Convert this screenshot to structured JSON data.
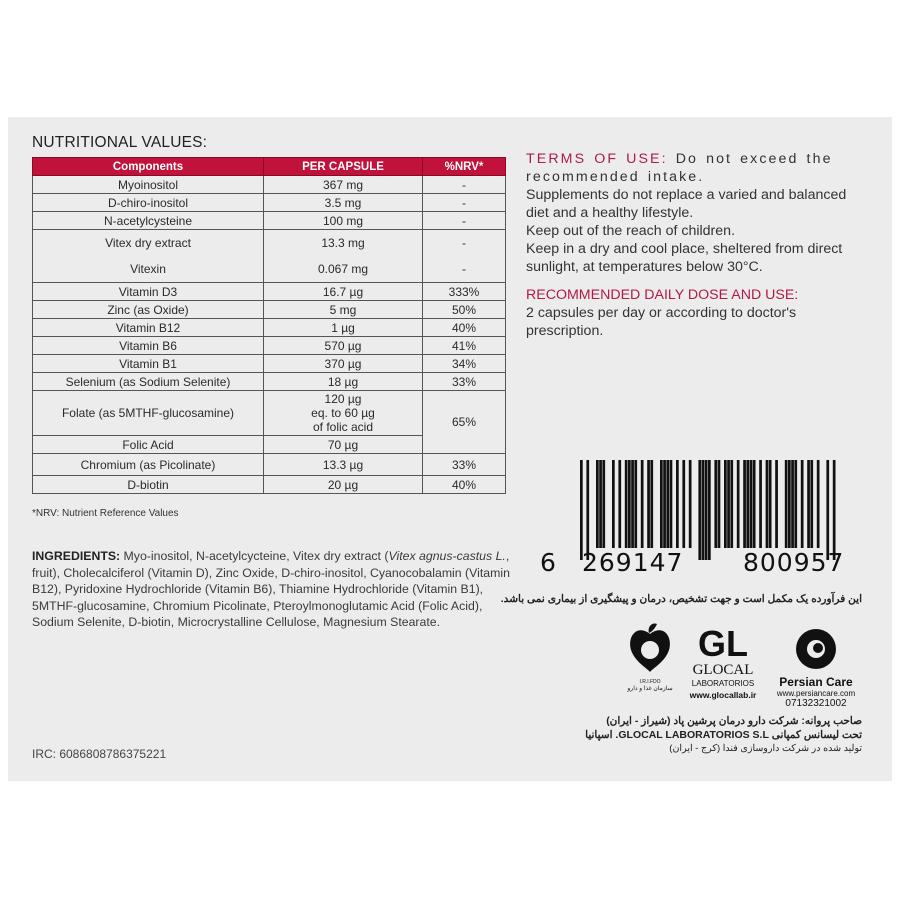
{
  "nutrition": {
    "title": "NUTRITIONAL VALUES:",
    "headers": [
      "Components",
      "PER CAPSULE",
      "%NRV*"
    ],
    "rows": [
      {
        "component": "Myoinositol",
        "per_capsule": "367 mg",
        "nrv": "-"
      },
      {
        "component": "D-chiro-inositol",
        "per_capsule": "3.5 mg",
        "nrv": "-"
      },
      {
        "component": "N-acetylcysteine",
        "per_capsule": "100 mg",
        "nrv": "-"
      },
      {
        "component": "Vitex dry extract",
        "per_capsule": "13.3 mg",
        "nrv": "-"
      },
      {
        "component": "Vitexin",
        "per_capsule": "0.067 mg",
        "nrv": "-"
      },
      {
        "component": "Vitamin D3",
        "per_capsule": "16.7 µg",
        "nrv": "333%"
      },
      {
        "component": "Zinc (as Oxide)",
        "per_capsule": "5 mg",
        "nrv": "50%"
      },
      {
        "component": "Vitamin B12",
        "per_capsule": "1 µg",
        "nrv": "40%"
      },
      {
        "component": "Vitamin B6",
        "per_capsule": "570 µg",
        "nrv": "41%"
      },
      {
        "component": "Vitamin B1",
        "per_capsule": "370 µg",
        "nrv": "34%"
      },
      {
        "component": "Selenium (as Sodium Selenite)",
        "per_capsule": "18 µg",
        "nrv": "33%"
      },
      {
        "component": "Folate (as 5MTHF-glucosamine)",
        "per_capsule_lines": [
          "120 µg",
          "eq. to 60 µg",
          "of folic acid"
        ],
        "nrv": "65%"
      },
      {
        "component": "Folic Acid",
        "per_capsule": "70 µg"
      },
      {
        "component": "Chromium (as Picolinate)",
        "per_capsule": "13.3 µg",
        "nrv": "33%"
      },
      {
        "component": "D-biotin",
        "per_capsule": "20 µg",
        "nrv": "40%"
      }
    ],
    "footnote": "*NRV: Nutrient Reference Values"
  },
  "ingredients": {
    "label": "INGREDIENTS:",
    "text1": " Myo-inositol, N-acetylcycteine, Vitex dry extract (",
    "italic": "Vitex agnus-castus L.",
    "text2": ", fruit), Cholecalciferol (Vitamin D), Zinc Oxide, D-chiro-inositol, Cyanocobalamin (Vitamin B12), Pyridoxine Hydrochloride (Vitamin B6), Thiamine Hydrochloride (Vitamin B1), 5MTHF-glucosamine, Chromium Picolinate, Pteroylmonoglutamic Acid (Folic Acid), Sodium Selenite, D-biotin, Microcrystalline Cellulose, Magnesium Stearate."
  },
  "irc": "IRC: 6086808786375221",
  "terms": {
    "label": "TERMS OF USE:",
    "first": " Do not exceed the recommended intake.",
    "lines": [
      "Supplements do not replace a varied and balanced diet and a healthy lifestyle.",
      "Keep out of the reach of children.",
      "Keep in a dry and cool place, sheltered from direct sunlight, at temperatures below 30°C."
    ]
  },
  "dose": {
    "label": "RECOMMENDED DAILY DOSE AND USE:",
    "text": "2 capsules per day or according to doctor's prescription."
  },
  "barcode": {
    "first": "6",
    "left": "269147",
    "right": "800957"
  },
  "persian_notice": "این فرآورده یک مکمل است و جهت تشخیص، درمان و پیشگیری از بیماری نمی باشد.",
  "logos": {
    "irfdo": {
      "text": "I.R.I.FDO",
      "fa": "سازمان غذا و دارو"
    },
    "glocal": {
      "mark": "GL",
      "name": "GLOCAL",
      "sub": "LABORATORIOS",
      "url": "www.glocallab.ir"
    },
    "persian_care": {
      "name": "Persian Care",
      "url": "www.persiancare.com",
      "phone": "07132321002"
    }
  },
  "license": [
    "صاحب پروانه: شرکت دارو درمان پرشین پاد (شیراز - ایران)",
    "تحت لیسانس کمپانی GLOCAL LABORATORIOS S.L. اسپانیا",
    "تولید شده در شرکت داروسازی فندا (کرج - ایران)"
  ],
  "colors": {
    "accent": "#c0123a",
    "text_accent": "#b01a45",
    "background": "#ececec"
  }
}
